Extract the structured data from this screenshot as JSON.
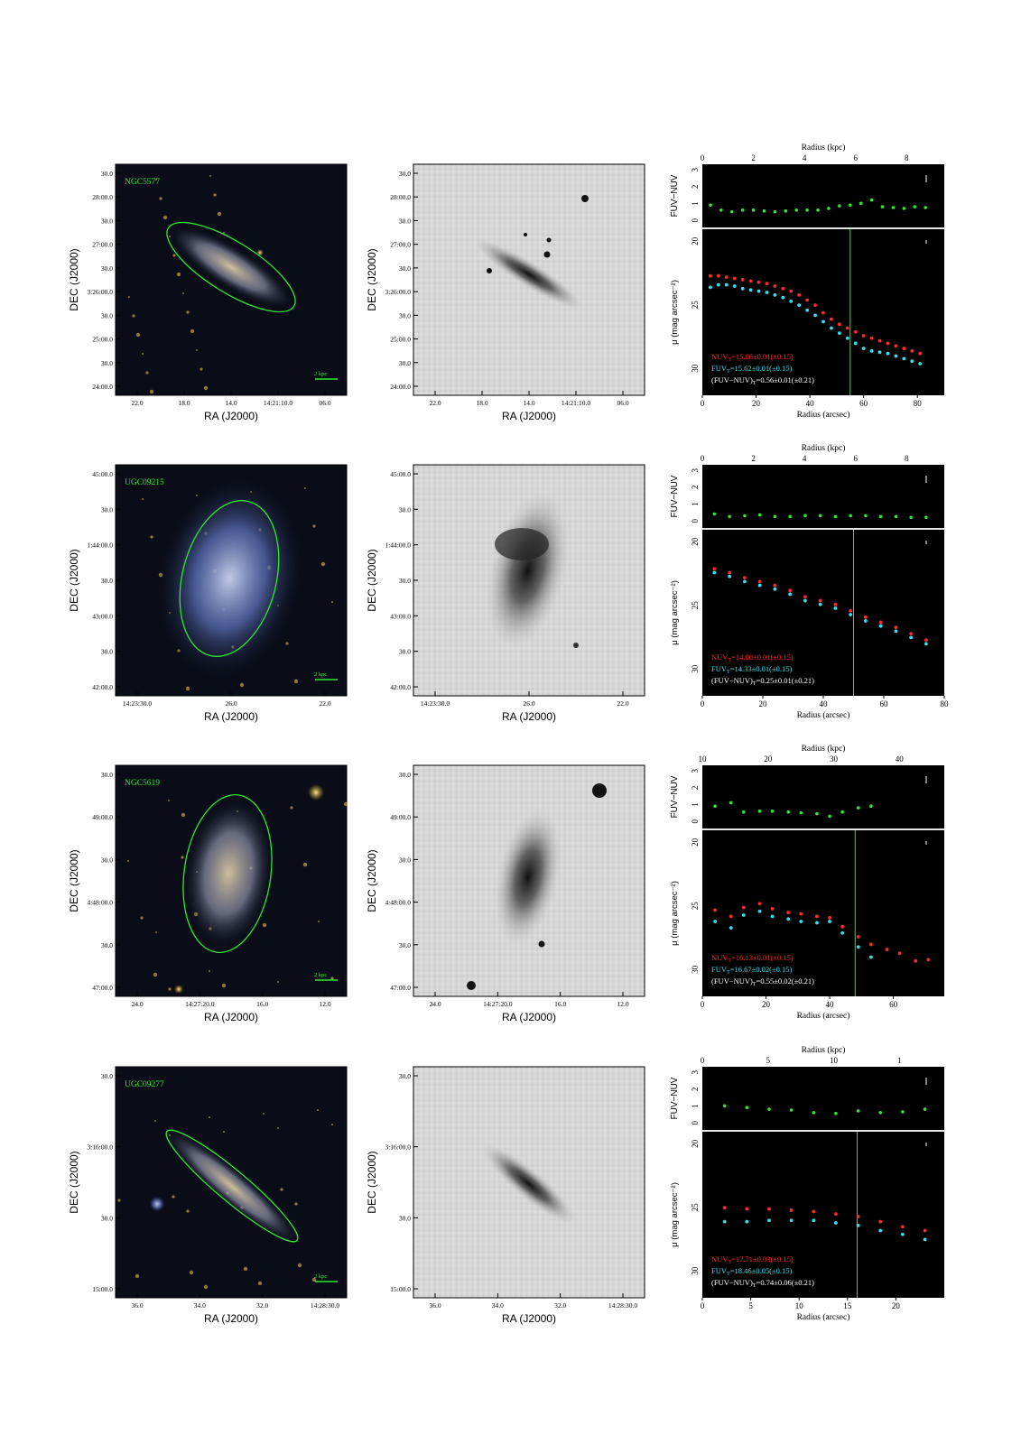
{
  "panels": [
    {
      "name": "NGC5577",
      "ra_ticks": [
        "22.0",
        "18.0",
        "14.0",
        "14:21:10.0",
        "06.0"
      ],
      "dec_ticks": [
        "30.0",
        "28:00.0",
        "30.0",
        "27:00.0",
        "30.0",
        "3:26:00.0",
        "30.0",
        "25:00.0",
        "30.0",
        "24:00.0"
      ],
      "ra_label": "RA (J2000)",
      "dec_label": "DEC (J2000)",
      "scalebar": "2 kpc",
      "kpc_ticks": [
        "0",
        "2",
        "4",
        "6",
        "8"
      ],
      "kpc_label": "Radius (kpc)",
      "arcsec_ticks": [
        "0",
        "20",
        "40",
        "60",
        "80"
      ],
      "arcsec_label": "Radius (arcsec)",
      "fuv_ticks": [
        "3",
        "2",
        "1",
        "0"
      ],
      "fuv_label": "FUV−NUV",
      "mu_ticks": [
        "20",
        "25",
        "30"
      ],
      "mu_label": "μ (mag arcsec⁻²)",
      "nuv_text": "NUVT=15.06±0.01(±0.15)",
      "fuv_text": "FUVT=15.62±0.01(±0.15)",
      "color_text": "(FUV−NUV)T=0.56±0.01(±0.21)",
      "xmax": 90,
      "vline": 55,
      "color_data": {
        "x": [
          3,
          7,
          11,
          15,
          19,
          23,
          27,
          31,
          35,
          39,
          43,
          47,
          51,
          55,
          59,
          63,
          67,
          71,
          75,
          79,
          83
        ],
        "y": [
          0.9,
          0.6,
          0.5,
          0.6,
          0.6,
          0.55,
          0.5,
          0.55,
          0.6,
          0.6,
          0.6,
          0.7,
          0.85,
          0.9,
          1.0,
          1.2,
          0.8,
          0.75,
          0.7,
          0.8,
          0.75
        ]
      },
      "nuv_data": {
        "x": [
          3,
          6,
          9,
          12,
          15,
          18,
          21,
          24,
          27,
          30,
          33,
          36,
          39,
          42,
          45,
          48,
          51,
          54,
          57,
          60,
          63,
          66,
          69,
          72,
          75,
          78,
          81
        ],
        "y": [
          22.9,
          22.9,
          23.0,
          23.1,
          23.2,
          23.3,
          23.4,
          23.5,
          23.7,
          23.9,
          24.1,
          24.4,
          24.8,
          25.2,
          25.8,
          26.3,
          26.7,
          27.0,
          27.3,
          27.6,
          27.8,
          28.0,
          28.2,
          28.4,
          28.6,
          28.8,
          29.0
        ]
      },
      "fuvm_data": {
        "x": [
          3,
          6,
          9,
          12,
          15,
          18,
          21,
          24,
          27,
          30,
          33,
          36,
          39,
          42,
          45,
          48,
          51,
          54,
          57,
          60,
          63,
          66,
          69,
          72,
          75,
          78,
          81
        ],
        "y": [
          23.8,
          23.6,
          23.6,
          23.7,
          23.9,
          24.0,
          24.1,
          24.2,
          24.4,
          24.6,
          24.9,
          25.2,
          25.6,
          26.0,
          26.5,
          27.0,
          27.4,
          27.8,
          28.2,
          28.6,
          28.8,
          28.9,
          29.0,
          29.2,
          29.4,
          29.6,
          29.8
        ]
      }
    },
    {
      "name": "UGC09215",
      "ra_ticks": [
        "14:23:30.0",
        "26.0",
        "22.0"
      ],
      "dec_ticks": [
        "45:00.0",
        "30.0",
        "1:44:00.0",
        "30.0",
        "43:00.0",
        "30.0",
        "42:00.0"
      ],
      "ra_label": "RA (J2000)",
      "dec_label": "DEC (J2000)",
      "scalebar": "2 kpc",
      "kpc_ticks": [
        "0",
        "2",
        "4",
        "6",
        "8"
      ],
      "kpc_label": "Radius (kpc)",
      "arcsec_ticks": [
        "0",
        "20",
        "40",
        "60",
        "80"
      ],
      "arcsec_label": "Radius (arcsec)",
      "fuv_ticks": [
        "3",
        "2",
        "1",
        "0"
      ],
      "fuv_label": "FUV−NUV",
      "mu_ticks": [
        "20",
        "25",
        "30"
      ],
      "mu_label": "μ (mag arcsec⁻²)",
      "nuv_text": "NUVT=14.08±0.01(±0.15)",
      "fuv_text": "FUVT=14.33±0.01(±0.15)",
      "color_text": "(FUV−NUV)T=0.25±0.01(±0.21)",
      "xmax": 80,
      "vline": 50,
      "color_data": {
        "x": [
          4,
          9,
          14,
          19,
          24,
          29,
          34,
          39,
          44,
          49,
          54,
          59,
          64,
          69,
          74
        ],
        "y": [
          0.4,
          0.25,
          0.3,
          0.35,
          0.25,
          0.25,
          0.3,
          0.3,
          0.25,
          0.3,
          0.3,
          0.25,
          0.25,
          0.2,
          0.2
        ]
      },
      "nuv_data": {
        "x": [
          4,
          9,
          14,
          19,
          24,
          29,
          34,
          39,
          44,
          49,
          54,
          59,
          64,
          69,
          74
        ],
        "y": [
          22.3,
          22.6,
          23.0,
          23.3,
          23.6,
          24.0,
          24.5,
          24.8,
          25.1,
          25.6,
          26.1,
          26.5,
          26.9,
          27.4,
          27.9
        ]
      },
      "fuvm_data": {
        "x": [
          4,
          9,
          14,
          19,
          24,
          29,
          34,
          39,
          44,
          49,
          54,
          59,
          64,
          69,
          74
        ],
        "y": [
          22.6,
          22.9,
          23.3,
          23.6,
          23.9,
          24.3,
          24.8,
          25.1,
          25.4,
          25.9,
          26.4,
          26.8,
          27.2,
          27.7,
          28.2
        ]
      }
    },
    {
      "name": "NGC5619",
      "ra_ticks": [
        "24.0",
        "14:27:20.0",
        "16.0",
        "12.0"
      ],
      "dec_ticks": [
        "30.0",
        "49:00.0",
        "30.0",
        "4:48:00.0",
        "30.0",
        "47:00.0"
      ],
      "ra_label": "RA (J2000)",
      "dec_label": "DEC (J2000)",
      "scalebar": "2 kpc",
      "kpc_ticks": [
        "10",
        "20",
        "30",
        "40"
      ],
      "kpc_label": "Radius (kpc)",
      "arcsec_ticks": [
        "0",
        "20",
        "40",
        "60"
      ],
      "arcsec_label": "Radius (arcsec)",
      "fuv_ticks": [
        "3",
        "2",
        "1",
        "0"
      ],
      "fuv_label": "FUV−NUV",
      "mu_ticks": [
        "20",
        "25",
        "30"
      ],
      "mu_label": "μ (mag arcsec⁻²)",
      "nuv_text": "NUVT=16.13±0.01(±0.15)",
      "fuv_text": "FUVT=16.67±0.02(±0.15)",
      "color_text": "(FUV−NUV)T=0.55±0.02(±0.21)",
      "xmax": 76,
      "vline": 48,
      "color_data": {
        "x": [
          4,
          9,
          13,
          18,
          22,
          27,
          31,
          36,
          40,
          44,
          49,
          53
        ],
        "y": [
          0.9,
          1.1,
          0.55,
          0.6,
          0.6,
          0.55,
          0.5,
          0.45,
          0.3,
          0.55,
          0.8,
          0.9
        ]
      },
      "nuv_data": {
        "x": [
          4,
          9,
          13,
          18,
          22,
          27,
          31,
          36,
          40,
          44,
          49,
          53,
          58,
          62,
          67,
          71
        ],
        "y": [
          25.5,
          26.0,
          25.3,
          25.0,
          25.4,
          25.7,
          25.8,
          26.0,
          26.1,
          26.8,
          27.6,
          28.2,
          28.6,
          28.9,
          29.5,
          29.4
        ]
      },
      "fuvm_data": {
        "x": [
          4,
          9,
          13,
          18,
          22,
          27,
          31,
          36,
          40,
          44,
          49,
          53
        ],
        "y": [
          26.4,
          26.9,
          25.9,
          25.6,
          26.0,
          26.2,
          26.4,
          26.5,
          26.4,
          27.3,
          28.4,
          29.2
        ]
      }
    },
    {
      "name": "UGC09277",
      "ra_ticks": [
        "36.0",
        "34.0",
        "32.0",
        "14:28:30.0"
      ],
      "dec_ticks": [
        "30.0",
        "3:16:00.0",
        "30.0",
        "15:00.0"
      ],
      "ra_label": "RA (J2000)",
      "dec_label": "DEC (J2000)",
      "scalebar": "2 kpc",
      "kpc_ticks": [
        "0",
        "5",
        "10",
        "1"
      ],
      "kpc_label": "Radius (kpc)",
      "arcsec_ticks": [
        "0",
        "5",
        "10",
        "15",
        "20"
      ],
      "arcsec_label": "Radius (arcsec)",
      "fuv_ticks": [
        "3",
        "2",
        "1",
        "0"
      ],
      "fuv_label": "FUV−NUV",
      "mu_ticks": [
        "20",
        "25",
        "30"
      ],
      "mu_label": "μ (mag arcsec⁻²)",
      "nuv_text": "NUVT=17.71±0.03(±0.15)",
      "fuv_text": "FUVT=18.46±0.05(±0.15)",
      "color_text": "(FUV−NUV)T=0.74±0.06(±0.21)",
      "xmax": 25,
      "vline": 16,
      "color_data": {
        "x": [
          2.3,
          4.6,
          6.9,
          9.2,
          11.5,
          13.8,
          16.1,
          18.4,
          20.7,
          23.0
        ],
        "y": [
          1.0,
          0.9,
          0.8,
          0.75,
          0.6,
          0.55,
          0.7,
          0.6,
          0.65,
          0.8
        ]
      },
      "nuv_data": {
        "x": [
          2.3,
          4.6,
          6.9,
          9.2,
          11.5,
          13.8,
          16.1,
          18.4,
          20.7,
          23.0
        ],
        "y": [
          25.2,
          25.3,
          25.3,
          25.4,
          25.5,
          25.7,
          25.9,
          26.3,
          26.7,
          27.0
        ]
      },
      "fuvm_data": {
        "x": [
          2.3,
          4.6,
          6.9,
          9.2,
          11.5,
          13.8,
          16.1,
          18.4,
          20.7,
          23.0
        ],
        "y": [
          26.3,
          26.3,
          26.2,
          26.2,
          26.2,
          26.4,
          26.6,
          27.0,
          27.3,
          27.7
        ]
      }
    }
  ],
  "colors": {
    "red": "#ff2a2a",
    "cyan": "#33e0f0",
    "green": "#2fe82f",
    "white": "#ffffff",
    "black": "#000000"
  }
}
